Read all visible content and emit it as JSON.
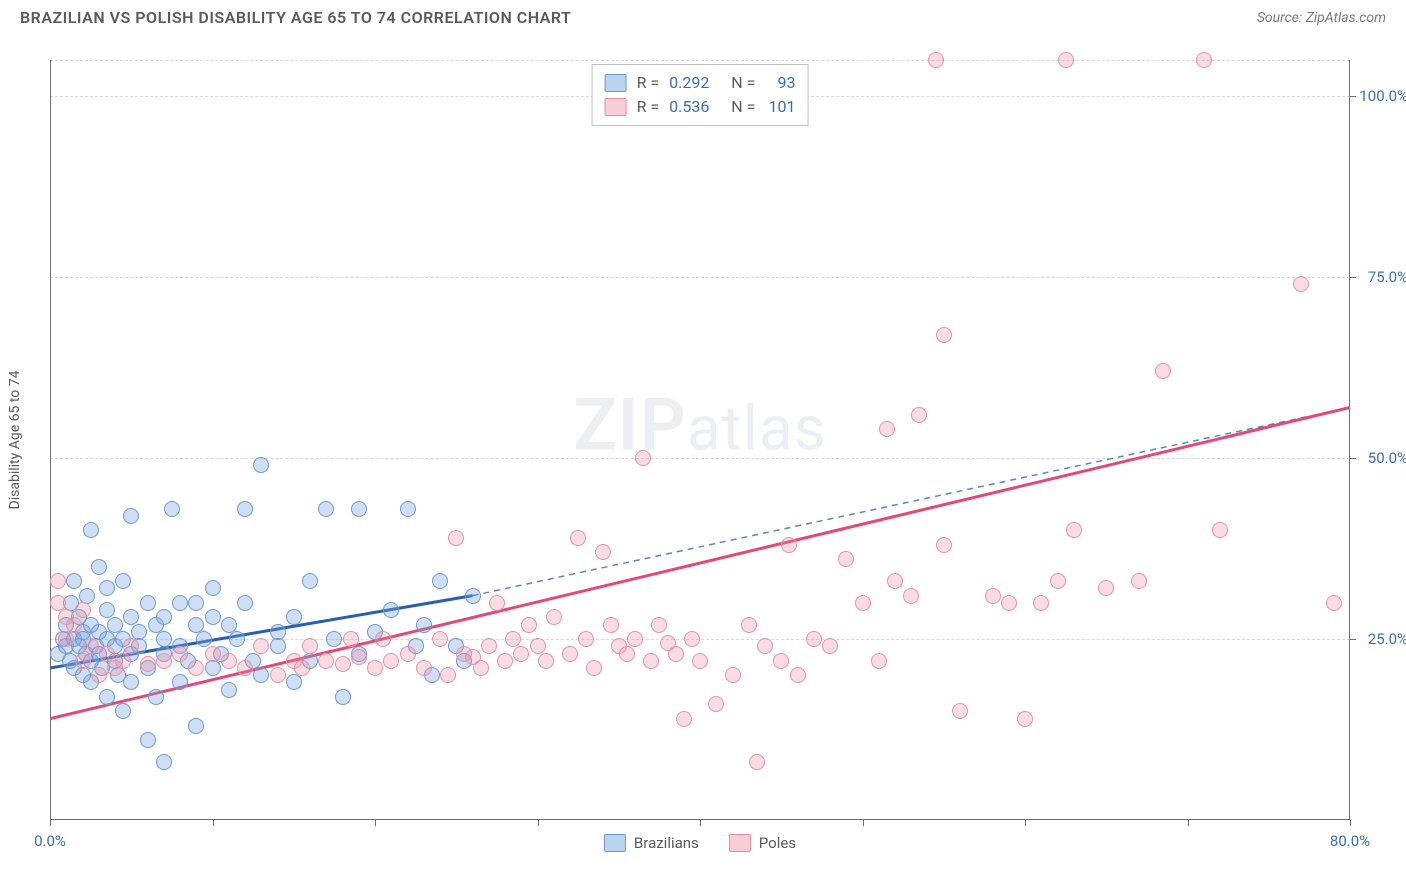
{
  "header": {
    "title": "BRAZILIAN VS POLISH DISABILITY AGE 65 TO 74 CORRELATION CHART",
    "source_prefix": "Source: ",
    "source_name": "ZipAtlas.com"
  },
  "watermark": {
    "zip": "ZIP",
    "atlas": "atlas"
  },
  "chart": {
    "type": "scatter",
    "ylabel": "Disability Age 65 to 74",
    "xlim": [
      0,
      80
    ],
    "ylim": [
      0,
      105
    ],
    "x_ticks": [
      0,
      10,
      20,
      30,
      40,
      50,
      60,
      70,
      80
    ],
    "x_tick_labels": {
      "0": "0.0%",
      "80": "80.0%"
    },
    "y_ticks": [
      25,
      50,
      75,
      100
    ],
    "y_tick_labels": {
      "25": "25.0%",
      "50": "50.0%",
      "75": "75.0%",
      "100": "100.0%"
    },
    "grid_y": [
      25,
      50,
      75,
      100,
      105
    ],
    "grid_color": "#d8d8d8",
    "background_color": "#ffffff",
    "axis_color": "#707070",
    "marker_radius": 8,
    "marker_border_width": 1.5,
    "series": [
      {
        "key": "brazilians",
        "label": "Brazilians",
        "fill": "rgba(120,160,220,0.35)",
        "stroke": "#6a9ad8",
        "swatch_fill": "#bcd3ef",
        "swatch_border": "#6a9ad8",
        "R": "0.292",
        "N": "93",
        "trend": {
          "x1": 0,
          "y1": 21,
          "x2": 26,
          "y2": 31,
          "solid_stroke": "#2a5fb0",
          "solid_width": 3,
          "ext_x2": 80,
          "ext_y2": 57,
          "dash_stroke": "#5b86c8",
          "dash": "6,5",
          "dash_width": 1.5
        },
        "points": [
          [
            0.5,
            23
          ],
          [
            0.8,
            25
          ],
          [
            1,
            24
          ],
          [
            1,
            27
          ],
          [
            1.2,
            22
          ],
          [
            1.3,
            30
          ],
          [
            1.5,
            25
          ],
          [
            1.5,
            21
          ],
          [
            1.5,
            33
          ],
          [
            1.8,
            24
          ],
          [
            1.8,
            28
          ],
          [
            2,
            20
          ],
          [
            2,
            26
          ],
          [
            2,
            25
          ],
          [
            2.2,
            23
          ],
          [
            2.3,
            31
          ],
          [
            2.5,
            22
          ],
          [
            2.5,
            27
          ],
          [
            2.5,
            19
          ],
          [
            2.5,
            40
          ],
          [
            2.8,
            24
          ],
          [
            3,
            35
          ],
          [
            3,
            26
          ],
          [
            3,
            23
          ],
          [
            3.2,
            21
          ],
          [
            3.5,
            25
          ],
          [
            3.5,
            29
          ],
          [
            3.5,
            17
          ],
          [
            3.5,
            32
          ],
          [
            4,
            24
          ],
          [
            4,
            27
          ],
          [
            4,
            22
          ],
          [
            4.2,
            20
          ],
          [
            4.5,
            33
          ],
          [
            4.5,
            25
          ],
          [
            4.5,
            15
          ],
          [
            5,
            28
          ],
          [
            5,
            23
          ],
          [
            5,
            19
          ],
          [
            5,
            42
          ],
          [
            5.5,
            26
          ],
          [
            5.5,
            24
          ],
          [
            6,
            30
          ],
          [
            6,
            21
          ],
          [
            6,
            11
          ],
          [
            6.5,
            27
          ],
          [
            6.5,
            17
          ],
          [
            7,
            25
          ],
          [
            7,
            8
          ],
          [
            7,
            23
          ],
          [
            7,
            28
          ],
          [
            7.5,
            43
          ],
          [
            8,
            24
          ],
          [
            8,
            30
          ],
          [
            8,
            19
          ],
          [
            8.5,
            22
          ],
          [
            9,
            27
          ],
          [
            9,
            13
          ],
          [
            9,
            30
          ],
          [
            9.5,
            25
          ],
          [
            10,
            28
          ],
          [
            10,
            21
          ],
          [
            10,
            32
          ],
          [
            10.5,
            23
          ],
          [
            11,
            27
          ],
          [
            11,
            18
          ],
          [
            11.5,
            25
          ],
          [
            12,
            30
          ],
          [
            12,
            43
          ],
          [
            12.5,
            22
          ],
          [
            13,
            20
          ],
          [
            13,
            49
          ],
          [
            14,
            26
          ],
          [
            14,
            24
          ],
          [
            15,
            19
          ],
          [
            15,
            28
          ],
          [
            16,
            22
          ],
          [
            16,
            33
          ],
          [
            17,
            43
          ],
          [
            17.5,
            25
          ],
          [
            18,
            17
          ],
          [
            19,
            23
          ],
          [
            19,
            43
          ],
          [
            20,
            26
          ],
          [
            21,
            29
          ],
          [
            22,
            43
          ],
          [
            22.5,
            24
          ],
          [
            23,
            27
          ],
          [
            23.5,
            20
          ],
          [
            24,
            33
          ],
          [
            25,
            24
          ],
          [
            25.5,
            22
          ],
          [
            26,
            31
          ]
        ]
      },
      {
        "key": "poles",
        "label": "Poles",
        "fill": "rgba(240,140,160,0.30)",
        "stroke": "#e593a6",
        "swatch_fill": "#f7cdd6",
        "swatch_border": "#e88ca0",
        "R": "0.536",
        "N": "101",
        "trend": {
          "x1": 0,
          "y1": 14,
          "x2": 80,
          "y2": 57,
          "solid_stroke": "#e24a75",
          "solid_width": 3
        },
        "points": [
          [
            0.5,
            30
          ],
          [
            0.5,
            33
          ],
          [
            1,
            28
          ],
          [
            1,
            25
          ],
          [
            1.5,
            27
          ],
          [
            2,
            22
          ],
          [
            2,
            29
          ],
          [
            2.5,
            24
          ],
          [
            3,
            20
          ],
          [
            3.5,
            23
          ],
          [
            4,
            21
          ],
          [
            4.5,
            22
          ],
          [
            5,
            24
          ],
          [
            6,
            21.5
          ],
          [
            7,
            22
          ],
          [
            8,
            23
          ],
          [
            9,
            21
          ],
          [
            10,
            23
          ],
          [
            11,
            22
          ],
          [
            12,
            21
          ],
          [
            13,
            24
          ],
          [
            14,
            20
          ],
          [
            15,
            22
          ],
          [
            15.5,
            21
          ],
          [
            16,
            24
          ],
          [
            17,
            22
          ],
          [
            18,
            21.5
          ],
          [
            18.5,
            25
          ],
          [
            19,
            22.5
          ],
          [
            20,
            21
          ],
          [
            20.5,
            25
          ],
          [
            21,
            22
          ],
          [
            22,
            23
          ],
          [
            23,
            21
          ],
          [
            24,
            25
          ],
          [
            24.5,
            20
          ],
          [
            25,
            39
          ],
          [
            25.5,
            23
          ],
          [
            26,
            22.5
          ],
          [
            26.5,
            21
          ],
          [
            27,
            24
          ],
          [
            27.5,
            30
          ],
          [
            28,
            22
          ],
          [
            28.5,
            25
          ],
          [
            29,
            23
          ],
          [
            29.5,
            27
          ],
          [
            30,
            24
          ],
          [
            30.5,
            22
          ],
          [
            31,
            28
          ],
          [
            32,
            23
          ],
          [
            32.5,
            39
          ],
          [
            33,
            25
          ],
          [
            33.5,
            21
          ],
          [
            34,
            37
          ],
          [
            34.5,
            27
          ],
          [
            35,
            24
          ],
          [
            35.5,
            23
          ],
          [
            36,
            25
          ],
          [
            36.5,
            50
          ],
          [
            37,
            22
          ],
          [
            37.5,
            27
          ],
          [
            38,
            24.5
          ],
          [
            38.5,
            23
          ],
          [
            39,
            14
          ],
          [
            39.5,
            25
          ],
          [
            40,
            22
          ],
          [
            41,
            16
          ],
          [
            42,
            20
          ],
          [
            43,
            27
          ],
          [
            43.5,
            8
          ],
          [
            44,
            24
          ],
          [
            45,
            22
          ],
          [
            45.5,
            38
          ],
          [
            46,
            20
          ],
          [
            47,
            25
          ],
          [
            48,
            24
          ],
          [
            49,
            36
          ],
          [
            50,
            30
          ],
          [
            51,
            22
          ],
          [
            51.5,
            54
          ],
          [
            52,
            33
          ],
          [
            53,
            31
          ],
          [
            53.5,
            56
          ],
          [
            54.5,
            105
          ],
          [
            55,
            38
          ],
          [
            55,
            67
          ],
          [
            56,
            15
          ],
          [
            58,
            31
          ],
          [
            59,
            30
          ],
          [
            60,
            14
          ],
          [
            61,
            30
          ],
          [
            62,
            33
          ],
          [
            62.5,
            105
          ],
          [
            63,
            40
          ],
          [
            65,
            32
          ],
          [
            67,
            33
          ],
          [
            68.5,
            62
          ],
          [
            71,
            105
          ],
          [
            72,
            40
          ],
          [
            77,
            74
          ],
          [
            79,
            30
          ]
        ]
      }
    ],
    "stats_box": {
      "R_label": "R =",
      "N_label": "N ="
    },
    "legend": {
      "items": [
        {
          "key": "brazilians",
          "label": "Brazilians"
        },
        {
          "key": "poles",
          "label": "Poles"
        }
      ]
    }
  }
}
